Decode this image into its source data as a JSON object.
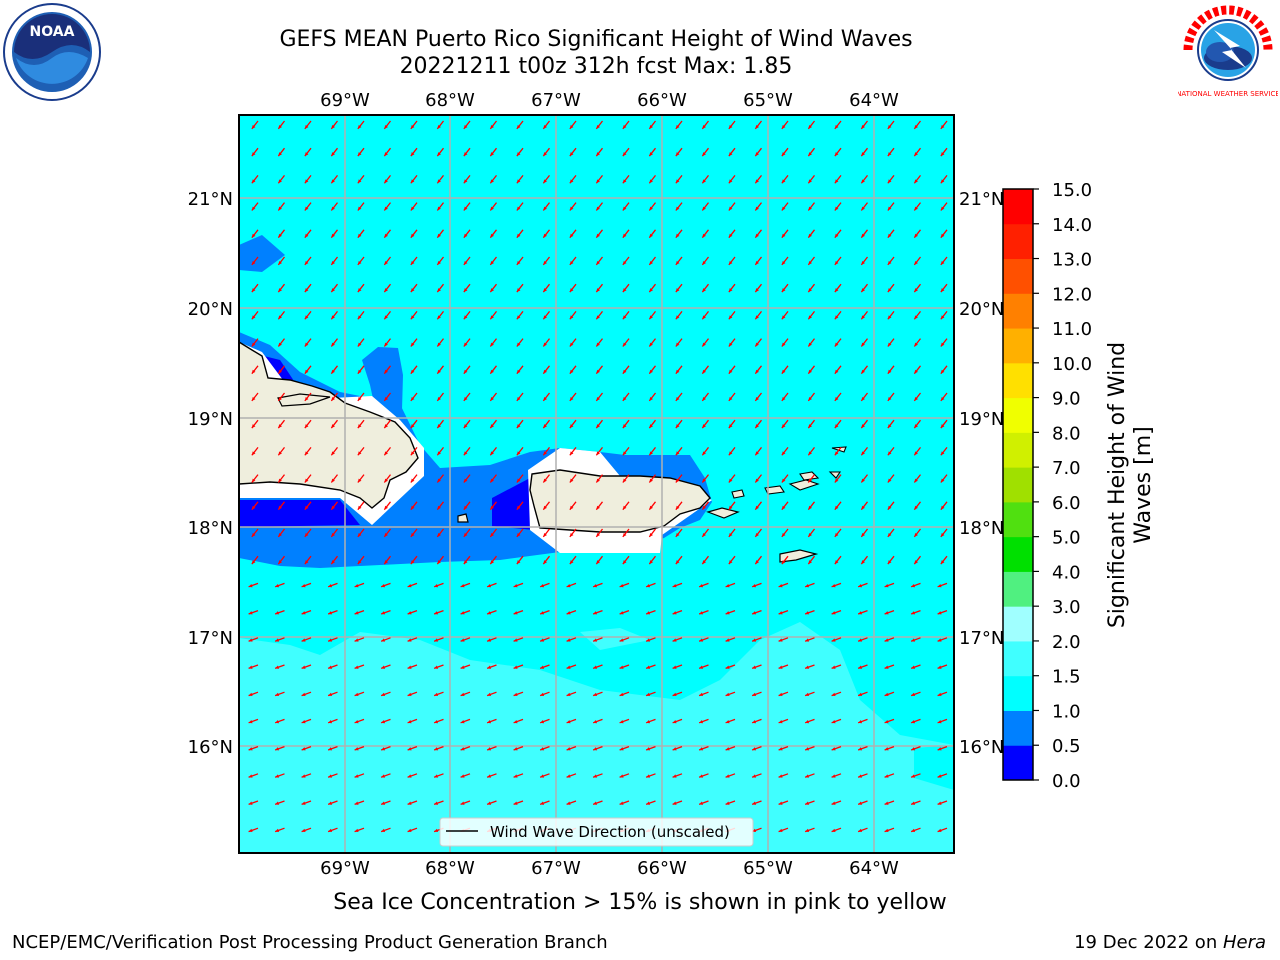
{
  "header": {
    "title_line1": "GEFS MEAN Puerto Rico Significant Height of Wind Waves",
    "title_line2": "20221211 t00z 312h fcst   Max: 1.85"
  },
  "logos": {
    "left": {
      "icon": "noaa-logo-icon",
      "text": "NOAA"
    },
    "right": {
      "icon": "nws-logo-icon",
      "text": "NATIONAL WEATHER SERVICE"
    }
  },
  "map": {
    "lon_labels": [
      "69°W",
      "68°W",
      "67°W",
      "66°W",
      "65°W",
      "64°W"
    ],
    "lat_labels": [
      "21°N",
      "20°N",
      "19°N",
      "18°N",
      "17°N",
      "16°N"
    ],
    "legend_label": "Wind Wave Direction (unscaled)",
    "arrow_color": "#ff0000",
    "land_color": "#efeedd"
  },
  "colorbar": {
    "title": "Significant Height of Wind Waves [m]",
    "tick_labels": [
      "0.0",
      "0.5",
      "1.0",
      "1.5",
      "2.0",
      "3.0",
      "4.0",
      "5.0",
      "6.0",
      "7.0",
      "8.0",
      "9.0",
      "10.0",
      "11.0",
      "12.0",
      "13.0",
      "14.0",
      "15.0"
    ],
    "colors": [
      "#0000ff",
      "#0080ff",
      "#00ffff",
      "#40ffff",
      "#a0ffff",
      "#50f080",
      "#00e000",
      "#50e010",
      "#a0e000",
      "#d0f000",
      "#f0ff00",
      "#ffe000",
      "#ffb000",
      "#ff8000",
      "#ff5000",
      "#ff2000",
      "#ff0000"
    ]
  },
  "footer": {
    "note": "Sea Ice Concentration > 15% is shown in pink to yellow",
    "credit_left": "NCEP/EMC/Verification Post Processing Product Generation Branch",
    "date": "19 Dec 2022 on ",
    "host": "Hera"
  }
}
